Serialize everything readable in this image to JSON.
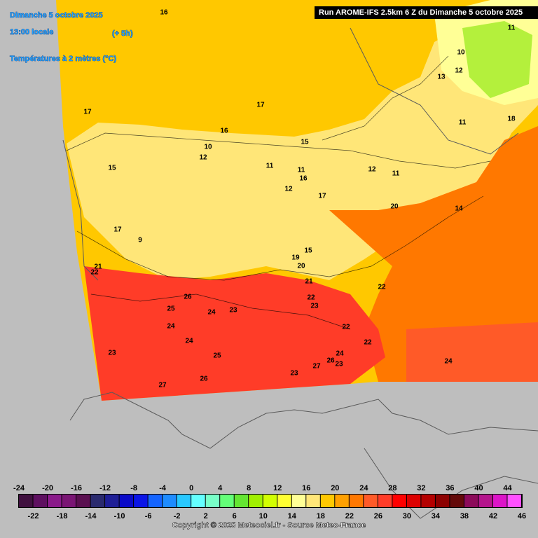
{
  "header": {
    "date": "Dimanche 5 octobre 2025",
    "time": "13:00 locale",
    "offset": "(+ 5h)",
    "variable": "Températures à 2 mètres (°C)",
    "run": "Run AROME-IFS 2.5km 6 Z du Dimanche 5 octobre 2025"
  },
  "map": {
    "contour_labels": [
      "16",
      "17",
      "17",
      "16",
      "10",
      "12",
      "15",
      "15",
      "11",
      "11",
      "20",
      "14",
      "17",
      "9",
      "21",
      "22",
      "26",
      "25",
      "24",
      "23",
      "24",
      "24",
      "23",
      "25",
      "27",
      "26",
      "23",
      "27",
      "26",
      "23",
      "24",
      "22",
      "22",
      "23",
      "22",
      "21",
      "20",
      "19",
      "15",
      "22",
      "24",
      "10",
      "12",
      "13",
      "11",
      "18",
      "12",
      "16",
      "17",
      "11",
      "12",
      "11"
    ]
  },
  "legend": {
    "ticks": [
      -24,
      -22,
      -20,
      -18,
      -16,
      -14,
      -12,
      -10,
      -8,
      -6,
      -4,
      -2,
      0,
      2,
      4,
      6,
      8,
      10,
      12,
      14,
      16,
      18,
      20,
      22,
      24,
      26,
      28,
      30,
      32,
      34,
      36,
      38,
      40,
      42,
      44,
      46
    ],
    "colors": [
      "#40103f",
      "#5e0f60",
      "#8a1a8a",
      "#7a1574",
      "#5a0f50",
      "#2a2a6e",
      "#1e1e96",
      "#0a0ac8",
      "#0a14e6",
      "#1464ff",
      "#1e8cff",
      "#28c8ff",
      "#64ffff",
      "#78ffc8",
      "#64ff78",
      "#64e632",
      "#a0f000",
      "#d2ff00",
      "#ffff32",
      "#ffff96",
      "#ffe678",
      "#ffc800",
      "#ffa000",
      "#ff7800",
      "#ff5a28",
      "#ff3c28",
      "#ff0000",
      "#dc0000",
      "#b40000",
      "#8c0000",
      "#640a0a",
      "#8c0a5a",
      "#b4148c",
      "#dc14c8",
      "#ff50ff"
    ]
  },
  "footer": {
    "copyright": "Copyright © 2025 Meteociel.fr - Source Meteo-France"
  }
}
